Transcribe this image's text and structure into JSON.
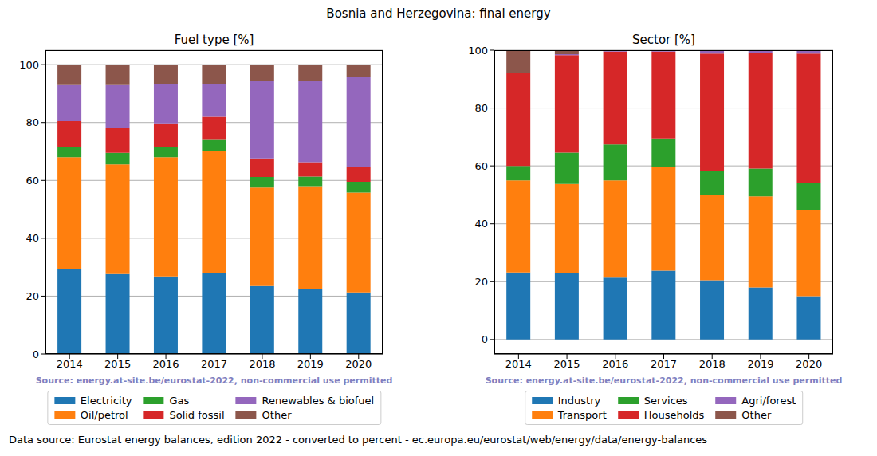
{
  "title": "Bosnia and Herzegovina: final energy",
  "footer": "Data source: Eurostat energy balances, edition 2022 - converted to percent - ec.europa.eu/eurostat/web/energy/data/energy-balances",
  "chart_data": [
    {
      "type": "bar",
      "title": "Fuel type [%]",
      "annotations": [
        "Source: energy.at-site.be/eurostat-2022, non-commercial use permitted"
      ],
      "stacked": true,
      "grid": true,
      "legend": "bottom",
      "categories": [
        "2014",
        "2015",
        "2016",
        "2017",
        "2018",
        "2019",
        "2020"
      ],
      "ylim": [
        0,
        105
      ],
      "yticks": [
        0,
        20,
        40,
        60,
        80,
        100
      ],
      "series": [
        {
          "name": "Electricity",
          "color": "#1f77b4",
          "values": [
            29.3,
            27.6,
            26.8,
            28,
            23.5,
            22.4,
            21.3
          ]
        },
        {
          "name": "Oil/petrol",
          "color": "#ff7f0e",
          "values": [
            38.7,
            37.9,
            41.2,
            42.2,
            34,
            35.6,
            34.5
          ]
        },
        {
          "name": "Gas",
          "color": "#2ca02c",
          "values": [
            3.5,
            4,
            3.5,
            4.1,
            3.7,
            3.3,
            3.7
          ]
        },
        {
          "name": "Solid fossil",
          "color": "#d62728",
          "values": [
            9,
            8.5,
            8.2,
            7.7,
            6.4,
            5,
            5.2
          ]
        },
        {
          "name": "Renewables & biofuel",
          "color": "#9467bd",
          "values": [
            12.7,
            15.2,
            13.7,
            11.4,
            26.9,
            28,
            31
          ]
        },
        {
          "name": "Other",
          "color": "#8c564b",
          "values": [
            6.8,
            6.8,
            6.6,
            6.6,
            5.5,
            5.7,
            4.3
          ]
        }
      ]
    },
    {
      "type": "bar",
      "title": "Sector [%]",
      "annotations": [
        "Source: energy.at-site.be/eurostat-2022, non-commercial use permitted"
      ],
      "stacked": true,
      "grid": true,
      "legend": "bottom",
      "categories": [
        "2014",
        "2015",
        "2016",
        "2017",
        "2018",
        "2019",
        "2020"
      ],
      "ylim": [
        -5,
        100
      ],
      "yticks": [
        0,
        20,
        40,
        60,
        80,
        100
      ],
      "series": [
        {
          "name": "Industry",
          "color": "#1f77b4",
          "values": [
            23.2,
            23,
            21.4,
            23.8,
            20.5,
            18,
            15
          ]
        },
        {
          "name": "Transport",
          "color": "#ff7f0e",
          "values": [
            31.8,
            30.8,
            33.6,
            35.7,
            29.5,
            31.5,
            29.8
          ]
        },
        {
          "name": "Services",
          "color": "#2ca02c",
          "values": [
            5,
            10.8,
            12.4,
            10,
            8.2,
            9.6,
            9.2
          ]
        },
        {
          "name": "Households",
          "color": "#d62728",
          "values": [
            32,
            33.7,
            32.1,
            30,
            40.6,
            40.1,
            44.8
          ]
        },
        {
          "name": "Agri/forest",
          "color": "#9467bd",
          "values": [
            0.3,
            0.3,
            0.2,
            0.2,
            1.0,
            0.6,
            1.0
          ]
        },
        {
          "name": "Other",
          "color": "#8c564b",
          "values": [
            7.7,
            1.4,
            0.3,
            0.3,
            0.2,
            0.2,
            0.2
          ]
        }
      ]
    }
  ]
}
